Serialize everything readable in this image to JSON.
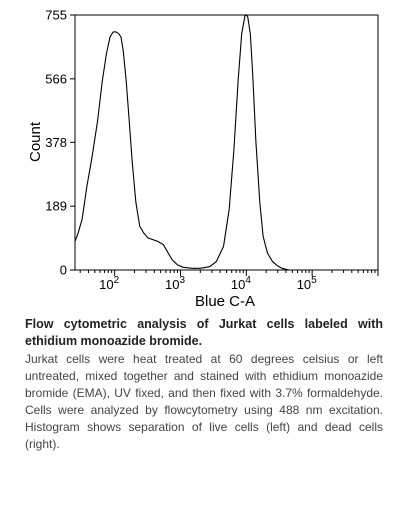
{
  "chart_data": {
    "type": "area",
    "title": "",
    "xlabel": "Blue C-A",
    "ylabel": "Count",
    "x_scale": "log",
    "xlim": [
      25,
      1000000
    ],
    "ylim": [
      0,
      755
    ],
    "yticks": [
      0,
      189,
      378,
      566,
      755
    ],
    "ytick_labels": [
      "0",
      "189",
      "378",
      "566",
      "755"
    ],
    "xticks": [
      100,
      1000,
      10000,
      100000
    ],
    "xtick_labels": [
      {
        "base": "10",
        "exp": "2"
      },
      {
        "base": "10",
        "exp": "3"
      },
      {
        "base": "10",
        "exp": "4"
      },
      {
        "base": "10",
        "exp": "5"
      }
    ],
    "grid": false,
    "color": "#000000",
    "series": [
      {
        "x": [
          25,
          28,
          32,
          38,
          45,
          55,
          65,
          75,
          85,
          95,
          105,
          115,
          125,
          135,
          150,
          165,
          185,
          210,
          240,
          275,
          320,
          380,
          450,
          550,
          650,
          750,
          900,
          1100,
          1500,
          2000,
          2800,
          3500,
          4500,
          5500,
          6500,
          7500,
          8500,
          9500,
          10000,
          10500,
          11500,
          12500,
          14000,
          16000,
          18000,
          21000,
          25000,
          30000,
          35000,
          40000,
          45000,
          50000
        ],
        "values": [
          85,
          110,
          150,
          250,
          330,
          440,
          560,
          640,
          690,
          705,
          705,
          700,
          690,
          650,
          560,
          450,
          320,
          200,
          130,
          110,
          95,
          90,
          85,
          75,
          50,
          30,
          15,
          8,
          5,
          5,
          10,
          25,
          70,
          180,
          360,
          560,
          700,
          752,
          755,
          750,
          700,
          580,
          380,
          200,
          100,
          50,
          25,
          12,
          5,
          2,
          0,
          0
        ]
      }
    ]
  },
  "caption": {
    "title": "Flow cytometric analysis of Jurkat cells labeled with ethidium monoazide bromide.",
    "body": "Jurkat cells were heat treated at 60 degrees celsius or left untreated, mixed together and stained with ethidium monoazide bromide (EMA), UV fixed, and then fixed with 3.7% formaldehyde. Cells were analyzed by flowcytometry using 488 nm excitation. Histogram shows separation of live cells (left) and dead cells (right)."
  }
}
